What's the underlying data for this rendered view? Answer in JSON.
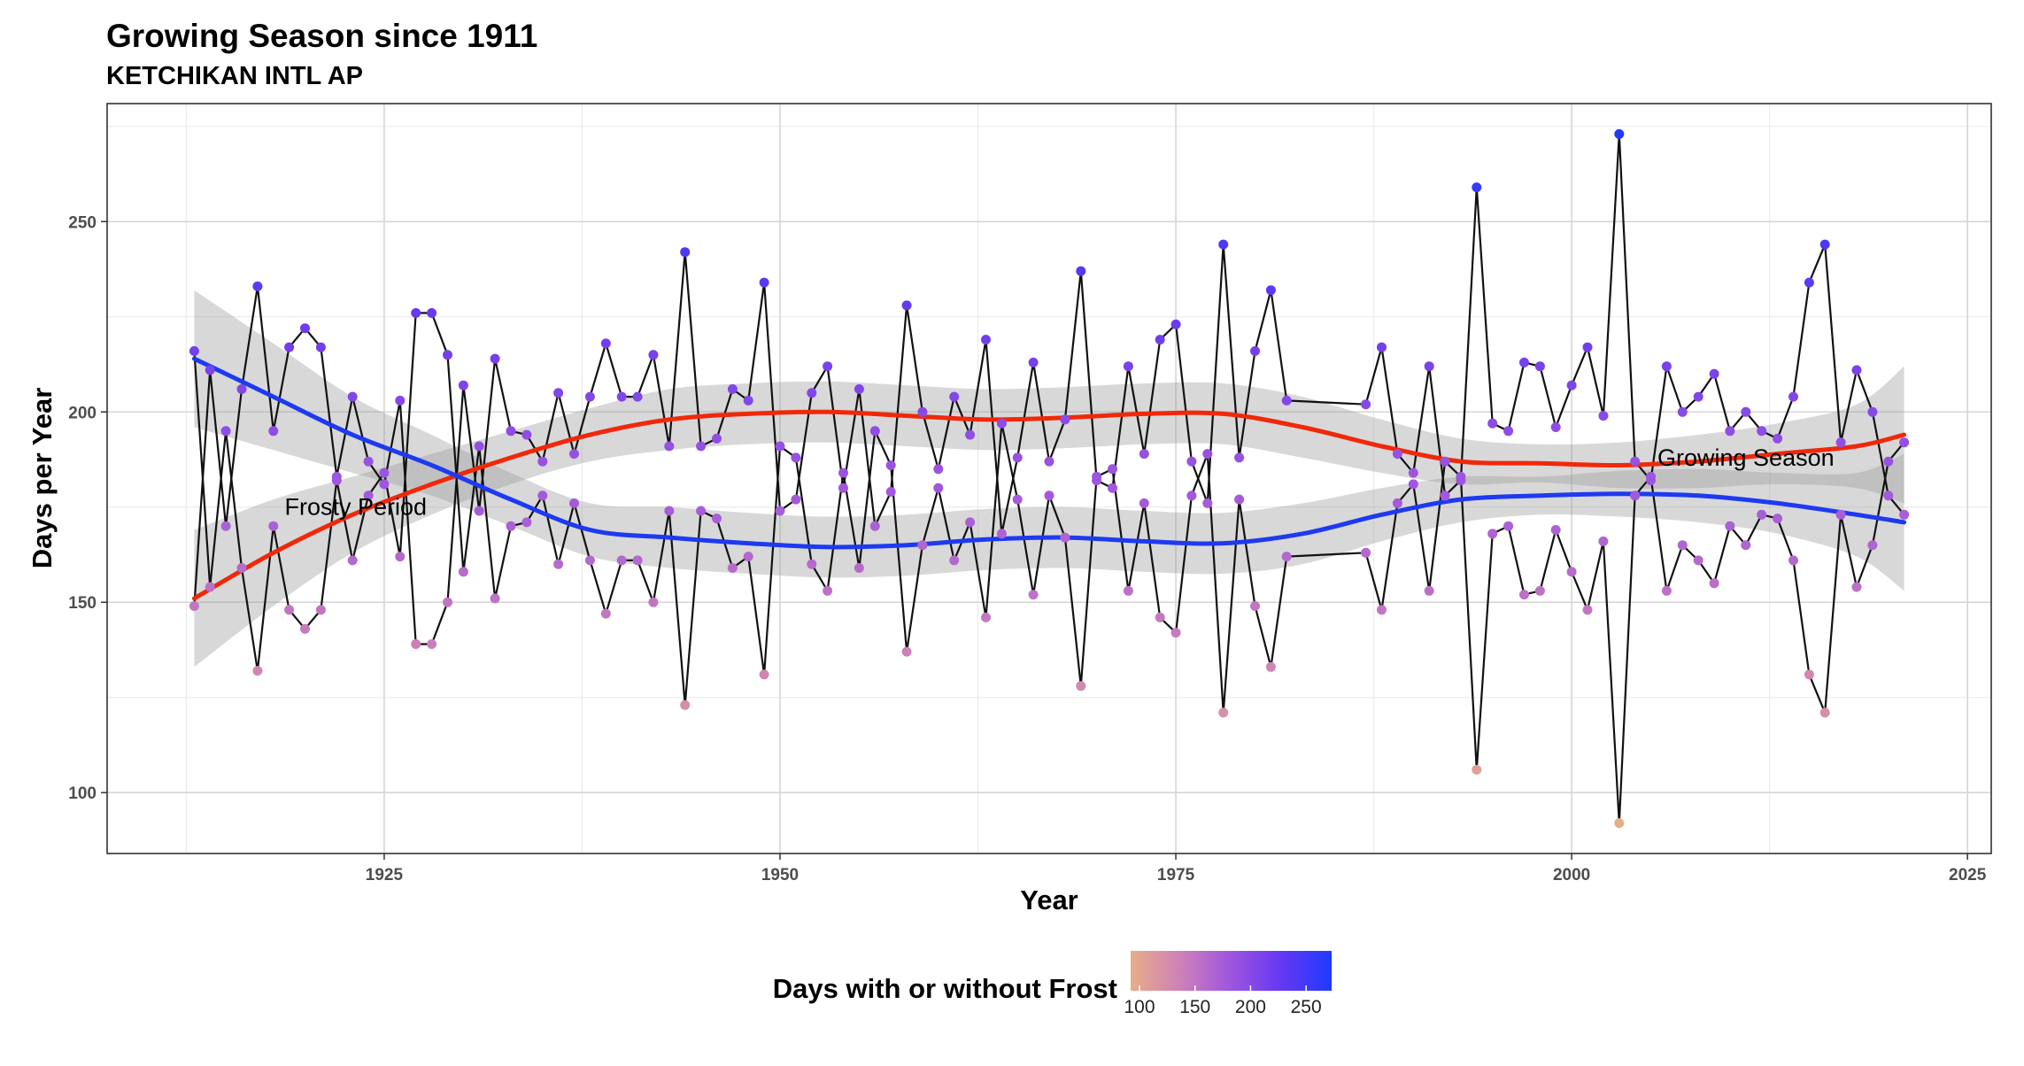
{
  "chart_data": {
    "type": "line",
    "title": "Growing Season since 1911",
    "subtitle": "KETCHIKAN INTL AP",
    "xlabel": "Year",
    "ylabel": "Days per Year",
    "xlim": [
      1907.5,
      2026.5
    ],
    "ylim": [
      84,
      281
    ],
    "x_ticks": [
      1925,
      1950,
      1975,
      2000,
      2025
    ],
    "y_ticks": [
      100,
      150,
      200,
      250
    ],
    "grid": true,
    "legend": {
      "position": "bottom",
      "title": "Days with or without Frost",
      "ticks": [
        100,
        150,
        200,
        250
      ],
      "range": [
        92,
        273
      ],
      "colors": [
        "#e7ad87",
        "#cd80b8",
        "#9e55df",
        "#6538f2",
        "#1f3aff"
      ]
    },
    "annotations": [
      {
        "text": "Frosty Period",
        "x": 1923.2,
        "y": 175
      },
      {
        "text": "Growing Season",
        "x": 2011,
        "y": 188
      }
    ],
    "series": [
      {
        "name": "Growing Season",
        "x": [
          1913,
          1914,
          1915,
          1916,
          1917,
          1918,
          1919,
          1920,
          1921,
          1922,
          1923,
          1924,
          1925,
          1926,
          1927,
          1928,
          1929,
          1930,
          1931,
          1932,
          1933,
          1934,
          1935,
          1936,
          1937,
          1938,
          1939,
          1940,
          1941,
          1942,
          1943,
          1944,
          1945,
          1946,
          1947,
          1948,
          1949,
          1950,
          1951,
          1952,
          1953,
          1954,
          1955,
          1956,
          1957,
          1958,
          1959,
          1960,
          1961,
          1962,
          1963,
          1964,
          1965,
          1966,
          1967,
          1968,
          1969,
          1970,
          1971,
          1972,
          1973,
          1974,
          1975,
          1976,
          1977,
          1978,
          1979,
          1980,
          1981,
          1982,
          1987,
          1988,
          1989,
          1990,
          1991,
          1992,
          1993,
          1994,
          1995,
          1996,
          1997,
          1998,
          1999,
          2000,
          2001,
          2002,
          2003,
          2004,
          2005,
          2006,
          2007,
          2008,
          2009,
          2010,
          2011,
          2012,
          2013,
          2014,
          2015,
          2016,
          2017,
          2018,
          2019,
          2020,
          2021
        ],
        "values": [
          149,
          211,
          170,
          206,
          233,
          195,
          217,
          222,
          217,
          183,
          204,
          187,
          181,
          203,
          139,
          139,
          150,
          207,
          174,
          214,
          195,
          194,
          187,
          205,
          189,
          204,
          218,
          204,
          204,
          215,
          191,
          242,
          191,
          193,
          206,
          203,
          234,
          174,
          177,
          205,
          212,
          180,
          206,
          170,
          179,
          228,
          200,
          185,
          204,
          194,
          219,
          168,
          188,
          213,
          187,
          198,
          237,
          182,
          180,
          212,
          189,
          219,
          223,
          187,
          176,
          244,
          188,
          216,
          232,
          203,
          202,
          217,
          189,
          184,
          212,
          178,
          182,
          259,
          197,
          195,
          213,
          212,
          196,
          207,
          217,
          199,
          273,
          187,
          182,
          212,
          200,
          204,
          210,
          195,
          200,
          195,
          193,
          204,
          234,
          244,
          192,
          211,
          200,
          178,
          173
        ]
      },
      {
        "name": "Frosty Period",
        "x": [
          1913,
          1914,
          1915,
          1916,
          1917,
          1918,
          1919,
          1920,
          1921,
          1922,
          1923,
          1924,
          1925,
          1926,
          1927,
          1928,
          1929,
          1930,
          1931,
          1932,
          1933,
          1934,
          1935,
          1936,
          1937,
          1938,
          1939,
          1940,
          1941,
          1942,
          1943,
          1944,
          1945,
          1946,
          1947,
          1948,
          1949,
          1950,
          1951,
          1952,
          1953,
          1954,
          1955,
          1956,
          1957,
          1958,
          1959,
          1960,
          1961,
          1962,
          1963,
          1964,
          1965,
          1966,
          1967,
          1968,
          1969,
          1970,
          1971,
          1972,
          1973,
          1974,
          1975,
          1976,
          1977,
          1978,
          1979,
          1980,
          1981,
          1982,
          1987,
          1988,
          1989,
          1990,
          1991,
          1992,
          1993,
          1994,
          1995,
          1996,
          1997,
          1998,
          1999,
          2000,
          2001,
          2002,
          2003,
          2004,
          2005,
          2006,
          2007,
          2008,
          2009,
          2010,
          2011,
          2012,
          2013,
          2014,
          2015,
          2016,
          2017,
          2018,
          2019,
          2020,
          2021
        ],
        "values": [
          216,
          154,
          195,
          159,
          132,
          170,
          148,
          143,
          148,
          182,
          161,
          178,
          184,
          162,
          226,
          226,
          215,
          158,
          191,
          151,
          170,
          171,
          178,
          160,
          176,
          161,
          147,
          161,
          161,
          150,
          174,
          123,
          174,
          172,
          159,
          162,
          131,
          191,
          188,
          160,
          153,
          184,
          159,
          195,
          186,
          137,
          165,
          180,
          161,
          171,
          146,
          197,
          177,
          152,
          178,
          167,
          128,
          183,
          185,
          153,
          176,
          146,
          142,
          178,
          189,
          121,
          177,
          149,
          133,
          162,
          163,
          148,
          176,
          181,
          153,
          187,
          183,
          106,
          168,
          170,
          152,
          153,
          169,
          158,
          148,
          166,
          92,
          178,
          183,
          153,
          165,
          161,
          155,
          170,
          165,
          173,
          172,
          161,
          131,
          121,
          173,
          154,
          165,
          187,
          192
        ]
      },
      {
        "name": "Growing Season trend",
        "x": [
          1913,
          1918,
          1923,
          1928,
          1933,
          1938,
          1943,
          1948,
          1953,
          1958,
          1963,
          1968,
          1973,
          1978,
          1983,
          1988,
          1993,
          1998,
          2003,
          2008,
          2013,
          2018,
          2021
        ],
        "values": [
          151,
          163,
          173,
          181,
          188,
          194,
          198,
          199.5,
          200,
          199,
          198,
          198.5,
          199.5,
          199.5,
          196,
          191,
          187,
          186.5,
          186,
          187,
          189,
          191,
          194
        ],
        "band": [
          18,
          14,
          10,
          8,
          7,
          7,
          8,
          8,
          8,
          8,
          8,
          8,
          8,
          8,
          8,
          7,
          6,
          5,
          6,
          7,
          8,
          11,
          18
        ]
      },
      {
        "name": "Frosty Period trend",
        "x": [
          1913,
          1918,
          1923,
          1928,
          1933,
          1938,
          1943,
          1948,
          1953,
          1958,
          1963,
          1968,
          1973,
          1978,
          1983,
          1988,
          1993,
          1998,
          2003,
          2008,
          2013,
          2018,
          2021
        ],
        "values": [
          214,
          204,
          194,
          186,
          177,
          169,
          167,
          165.5,
          164.5,
          165,
          166.5,
          167,
          166,
          165.5,
          168,
          173,
          177,
          178,
          178.5,
          178,
          176,
          173,
          171
        ],
        "band": [
          18,
          14,
          10,
          8,
          7,
          7,
          8,
          8,
          8,
          8,
          8,
          8,
          8,
          8,
          8,
          7,
          6,
          5,
          6,
          7,
          8,
          11,
          18
        ]
      }
    ]
  }
}
